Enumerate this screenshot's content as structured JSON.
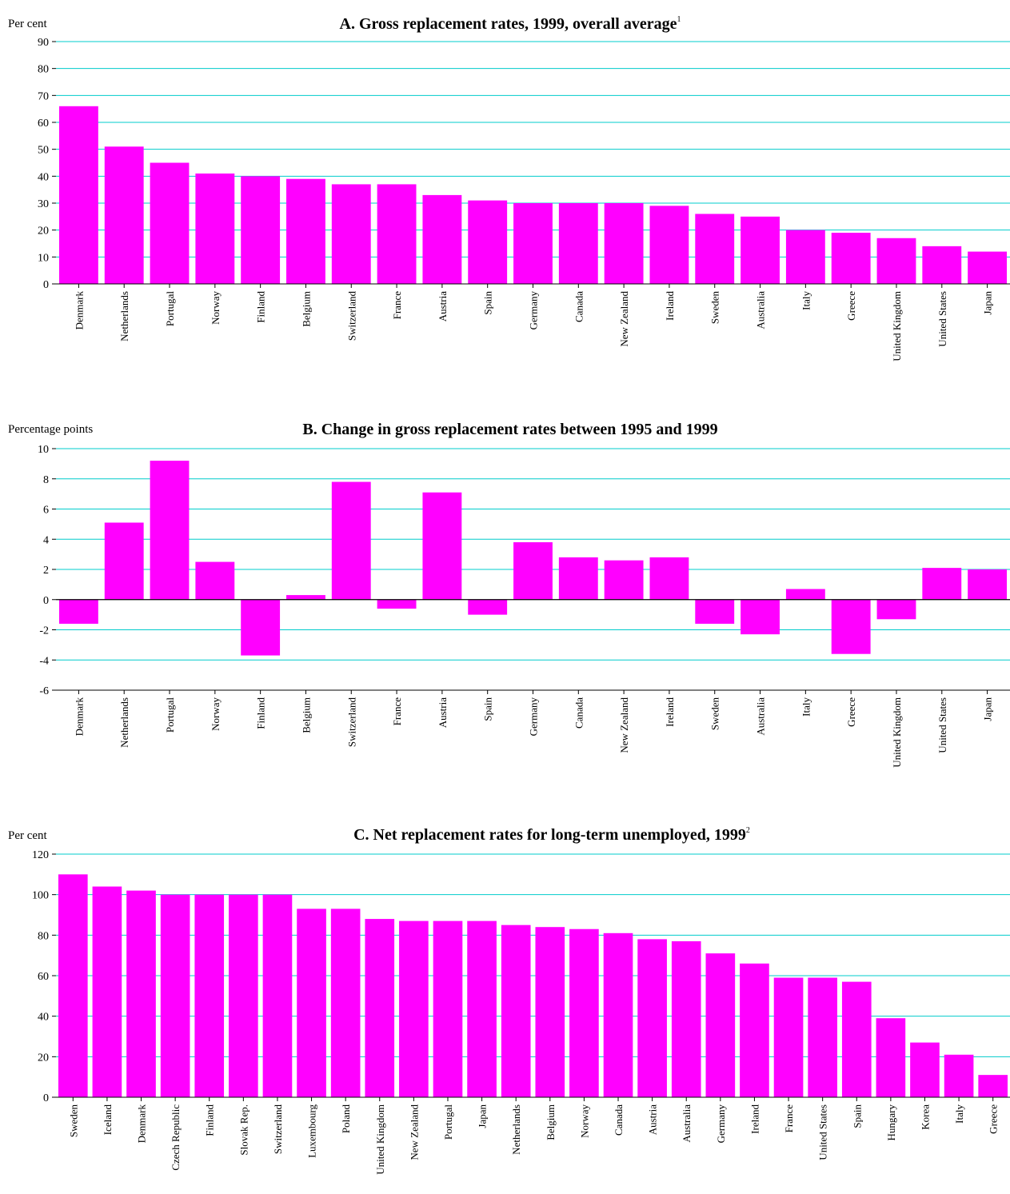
{
  "colors": {
    "bar": "#ff00ff",
    "grid": "#00cccc",
    "zero_line": "#000000"
  },
  "chart_data": [
    {
      "type": "bar",
      "title": "A. Gross replacement rates, 1999, overall average",
      "title_note": "1",
      "ylabel": "Per cent",
      "ylim": [
        0,
        90
      ],
      "yticks": [
        "0",
        "10",
        "20",
        "30",
        "40",
        "50",
        "60",
        "70",
        "80",
        "90"
      ],
      "grid": true,
      "categories": [
        "Denmark",
        "Netherlands",
        "Portugal",
        "Norway",
        "Finland",
        "Belgium",
        "Switzerland",
        "France",
        "Austria",
        "Spain",
        "Germany",
        "Canada",
        "New Zealand",
        "Ireland",
        "Sweden",
        "Australia",
        "Italy",
        "Greece",
        "United Kingdom",
        "United States",
        "Japan"
      ],
      "values": [
        66,
        51,
        45,
        41,
        40,
        39,
        37,
        37,
        33,
        31,
        30,
        30,
        30,
        29,
        26,
        25,
        20,
        19,
        17,
        14,
        12
      ]
    },
    {
      "type": "bar",
      "title": "B. Change in gross replacement rates between 1995 and 1999",
      "ylabel": "Percentage points",
      "ylim": [
        -6,
        10
      ],
      "yticks": [
        "-6",
        "-4",
        "-2",
        "0",
        "2",
        "4",
        "6",
        "8",
        "10"
      ],
      "grid": true,
      "categories": [
        "Denmark",
        "Netherlands",
        "Portugal",
        "Norway",
        "Finland",
        "Belgium",
        "Switzerland",
        "France",
        "Austria",
        "Spain",
        "Germany",
        "Canada",
        "New Zealand",
        "Ireland",
        "Sweden",
        "Australia",
        "Italy",
        "Greece",
        "United Kingdom",
        "United States",
        "Japan"
      ],
      "values": [
        -1.6,
        5.1,
        9.2,
        2.5,
        -3.7,
        0.3,
        7.8,
        -0.6,
        7.1,
        -1.0,
        3.8,
        2.8,
        2.6,
        2.8,
        -1.6,
        -2.3,
        0.7,
        -3.6,
        -1.3,
        2.1,
        2.0
      ]
    },
    {
      "type": "bar",
      "title": "C. Net replacement rates for long-term unemployed, 1999",
      "title_note": "2",
      "ylabel": "Per cent",
      "ylim": [
        0,
        120
      ],
      "yticks": [
        "0",
        "20",
        "40",
        "60",
        "80",
        "100",
        "120"
      ],
      "grid": true,
      "categories": [
        "Sweden",
        "Iceland",
        "Denmark",
        "Czech Republic",
        "Finland",
        "Slovak Rep.",
        "Switzerland",
        "Luxembourg",
        "Poland",
        "United Kingdom",
        "New Zealand",
        "Portugal",
        "Japan",
        "Netherlands",
        "Belgium",
        "Norway",
        "Canada",
        "Austria",
        "Australia",
        "Germany",
        "Ireland",
        "France",
        "United States",
        "Spain",
        "Hungary",
        "Korea",
        "Italy",
        "Greece"
      ],
      "values": [
        110,
        104,
        102,
        100,
        100,
        100,
        100,
        93,
        93,
        88,
        87,
        87,
        87,
        85,
        84,
        83,
        81,
        78,
        77,
        71,
        66,
        59,
        59,
        57,
        39,
        27,
        21,
        11
      ]
    }
  ]
}
